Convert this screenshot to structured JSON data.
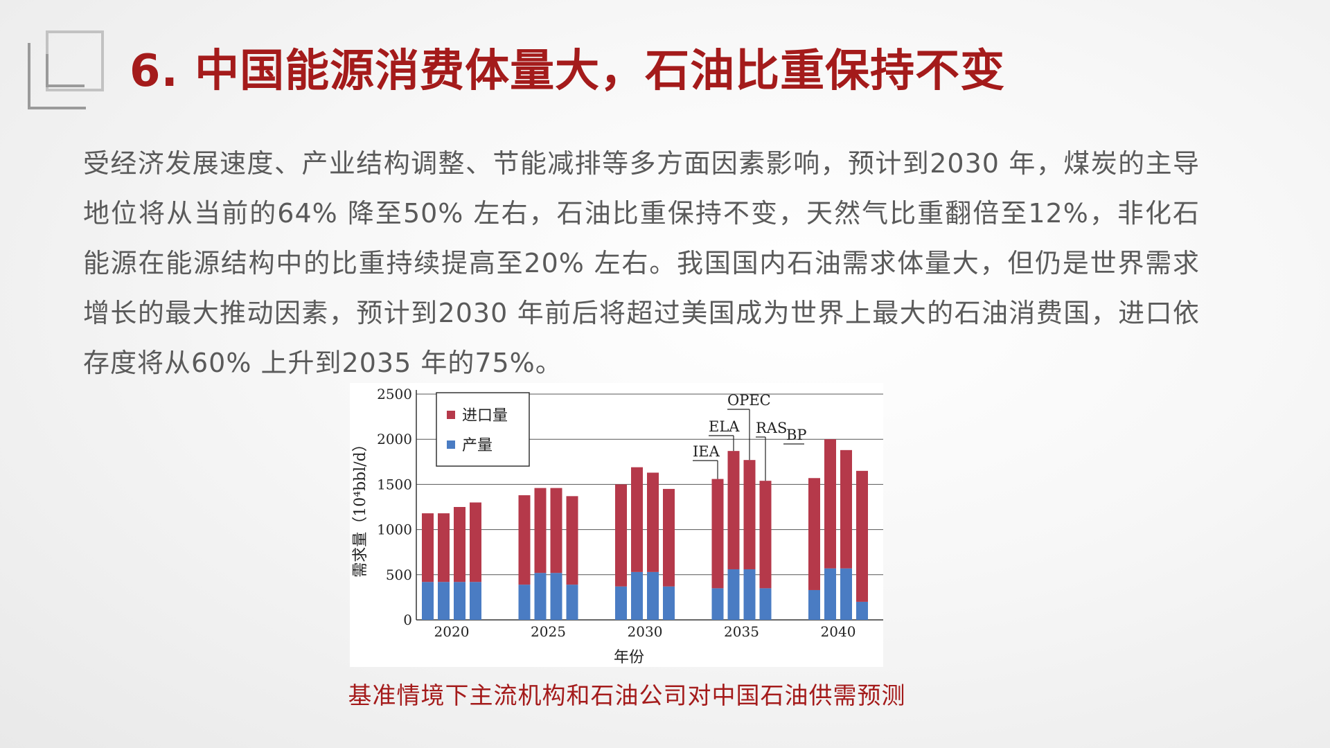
{
  "page": {
    "title": "6. 中国能源消费体量大，石油比重保持不变",
    "body": "受经济发展速度、产业结构调整、节能减排等多方面因素影响，预计到2030 年，煤炭的主导地位将从当前的64% 降至50% 左右，石油比重保持不变，天然气比重翻倍至12%，非化石能源在能源结构中的比重持续提高至20% 左右。我国国内石油需求体量大，但仍是世界需求增长的最大推动因素，预计到2030 年前后将超过美国成为世界上最大的石油消费国，进口依存度将从60% 上升到2035 年的75%。",
    "caption": "基准情境下主流机构和石油公司对中国石油供需预测"
  },
  "colors": {
    "title": "#a41b1b",
    "import_bar": "#b5394a",
    "production_bar": "#4a7cc3"
  },
  "chart_data": {
    "type": "bar",
    "stacked": true,
    "xlabel": "年份",
    "ylabel": "需求量（10⁴bbl/d）",
    "ylim": [
      0,
      2500
    ],
    "yticks": [
      0,
      500,
      1000,
      1500,
      2000,
      2500
    ],
    "grid": true,
    "legend_position": "top-left",
    "year_groups": [
      "2020",
      "2025",
      "2030",
      "2035",
      "2040"
    ],
    "bars_per_group": 4,
    "annotations": [
      "IEA",
      "ELA",
      "OPEC",
      "RAS",
      "BP"
    ],
    "series": [
      {
        "name": "产量",
        "values": [
          420,
          420,
          420,
          420,
          390,
          520,
          520,
          390,
          370,
          530,
          530,
          370,
          350,
          560,
          560,
          350,
          330,
          570,
          570,
          200
        ]
      },
      {
        "name": "进口量",
        "values": [
          760,
          760,
          830,
          880,
          990,
          940,
          940,
          980,
          1130,
          1160,
          1100,
          1080,
          1210,
          1310,
          1210,
          1190,
          1240,
          1430,
          1310,
          1450
        ]
      }
    ],
    "totals": [
      1180,
      1180,
      1250,
      1300,
      1380,
      1460,
      1460,
      1370,
      1500,
      1690,
      1630,
      1450,
      1560,
      1870,
      1770,
      1540,
      1570,
      2000,
      1880,
      1650
    ]
  }
}
